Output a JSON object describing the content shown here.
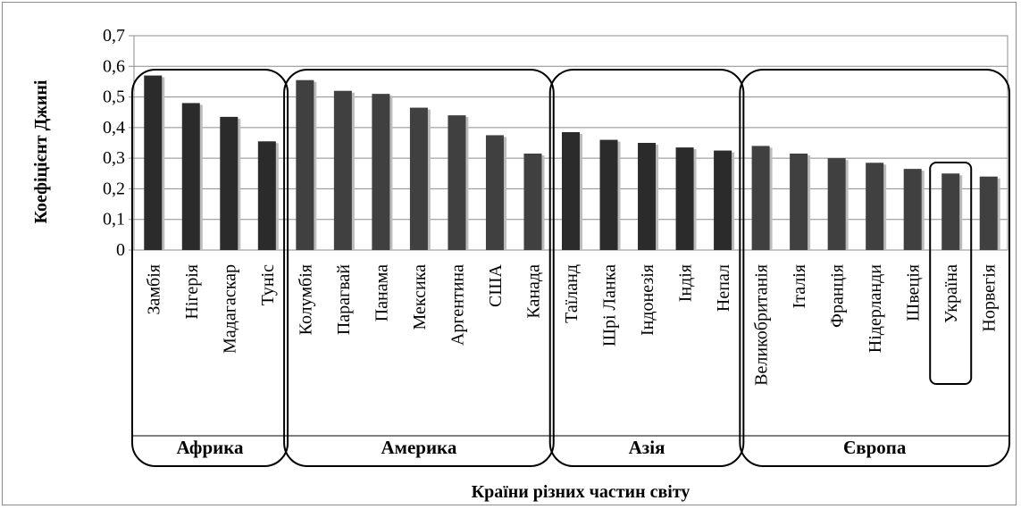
{
  "chart_data": {
    "type": "bar",
    "title": "",
    "xlabel": "Країни різних частин світу",
    "ylabel": "Коефіцієнт Джині",
    "ylim": [
      0,
      0.7
    ],
    "yticks": [
      "0",
      "0,1",
      "0,2",
      "0,3",
      "0,4",
      "0,5",
      "0,6",
      "0,7"
    ],
    "grid": true,
    "categories": [
      "Замбія",
      "Нігерія",
      "Мадагаскар",
      "Туніс",
      "Колумбія",
      "Парагвай",
      "Панама",
      "Мексика",
      "Аргентина",
      "США",
      "Канада",
      "Таїланд",
      "Шрі Ланка",
      "Індонезія",
      "Індія",
      "Непал",
      "Великобританія",
      "Італія",
      "Франція",
      "Нідерланди",
      "Швеція",
      "Україна",
      "Норвегія"
    ],
    "values": [
      0.57,
      0.48,
      0.435,
      0.355,
      0.555,
      0.52,
      0.51,
      0.465,
      0.44,
      0.375,
      0.315,
      0.385,
      0.36,
      0.35,
      0.335,
      0.325,
      0.34,
      0.315,
      0.3,
      0.285,
      0.265,
      0.25,
      0.24
    ],
    "groups": [
      {
        "name": "Африка",
        "start": 0,
        "end": 3
      },
      {
        "name": "Америка",
        "start": 4,
        "end": 10
      },
      {
        "name": "Азія",
        "start": 11,
        "end": 15
      },
      {
        "name": "Європа",
        "start": 16,
        "end": 22
      }
    ],
    "highlighted": "Україна",
    "colors": {
      "bar_dark": "#2b2b2b",
      "bar_mid": "#404040",
      "grid": "#8c8c8c"
    }
  }
}
